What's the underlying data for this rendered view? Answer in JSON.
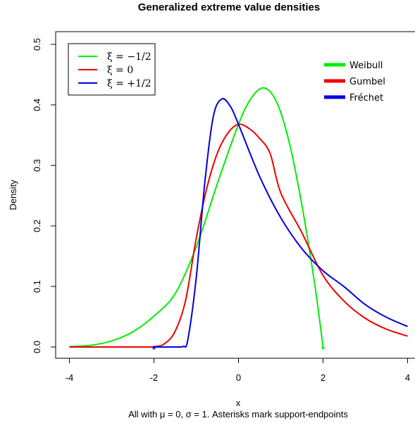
{
  "chart_data": {
    "type": "line",
    "title": "Generalized extreme value densities",
    "xlabel": "x",
    "ylabel": "Density",
    "caption": "All with μ = 0, σ = 1. Asterisks mark support-endpoints",
    "xlim": [
      -4,
      4
    ],
    "ylim": [
      0,
      0.5
    ],
    "x_ticks": [
      "-4",
      "-2",
      "0",
      "2",
      "4"
    ],
    "y_ticks": [
      "0.0",
      "0.1",
      "0.2",
      "0.3",
      "0.4",
      "0.5"
    ],
    "grid": false,
    "series": [
      {
        "name": "ξ = −1/2",
        "color": "#00ee00",
        "x": [
          -4.0,
          -3.5,
          -3.0,
          -2.5,
          -2.0,
          -1.5,
          -1.0,
          -0.5,
          0.0,
          0.3,
          0.6,
          0.9,
          1.2,
          1.5,
          1.8,
          2.0
        ],
        "y": [
          0.0006,
          0.0028,
          0.01,
          0.025,
          0.051,
          0.088,
          0.165,
          0.27,
          0.368,
          0.411,
          0.428,
          0.405,
          0.338,
          0.234,
          0.105,
          0.0
        ],
        "endpoint": {
          "x": 2,
          "y": 0
        }
      },
      {
        "name": "ξ = 0",
        "color": "#ee0000",
        "x": [
          -4.0,
          -3.0,
          -2.5,
          -2.0,
          -1.75,
          -1.5,
          -1.25,
          -1.0,
          -0.75,
          -0.5,
          -0.25,
          0.0,
          0.25,
          0.5,
          0.75,
          1.0,
          1.5,
          2.0,
          2.5,
          3.0,
          3.5,
          4.0
        ],
        "y": [
          0.0,
          0.0,
          0.0,
          0.0005,
          0.0055,
          0.0258,
          0.0774,
          0.1794,
          0.2623,
          0.3203,
          0.3535,
          0.3679,
          0.361,
          0.3446,
          0.3193,
          0.2546,
          0.1888,
          0.1182,
          0.0756,
          0.0474,
          0.0294,
          0.018
        ]
      },
      {
        "name": "ξ = +1/2",
        "color": "#0000dd",
        "x": [
          -2.0,
          -1.6,
          -1.5,
          -1.4,
          -1.3,
          -1.2,
          -1.0,
          -0.8,
          -0.6,
          -0.4,
          -0.2,
          0.0,
          0.5,
          1.0,
          1.5,
          2.0,
          2.5,
          3.0,
          3.5,
          4.0
        ],
        "y": [
          0.0,
          0.0,
          0.0,
          0.0,
          0.0011,
          0.0114,
          0.1141,
          0.2695,
          0.3794,
          0.4095,
          0.3983,
          0.3679,
          0.2817,
          0.2135,
          0.1624,
          0.1259,
          0.0995,
          0.07,
          0.0491,
          0.0339
        ],
        "endpoint": {
          "x": -2,
          "y": 0
        }
      }
    ],
    "legend": {
      "position": "top-left",
      "entries": [
        "ξ = −1/2",
        "ξ = 0",
        "ξ = +1/2"
      ]
    },
    "legend2": {
      "position": "top-right",
      "entries": [
        "Weibull",
        "Gumbel",
        "Fréchet"
      ]
    }
  }
}
